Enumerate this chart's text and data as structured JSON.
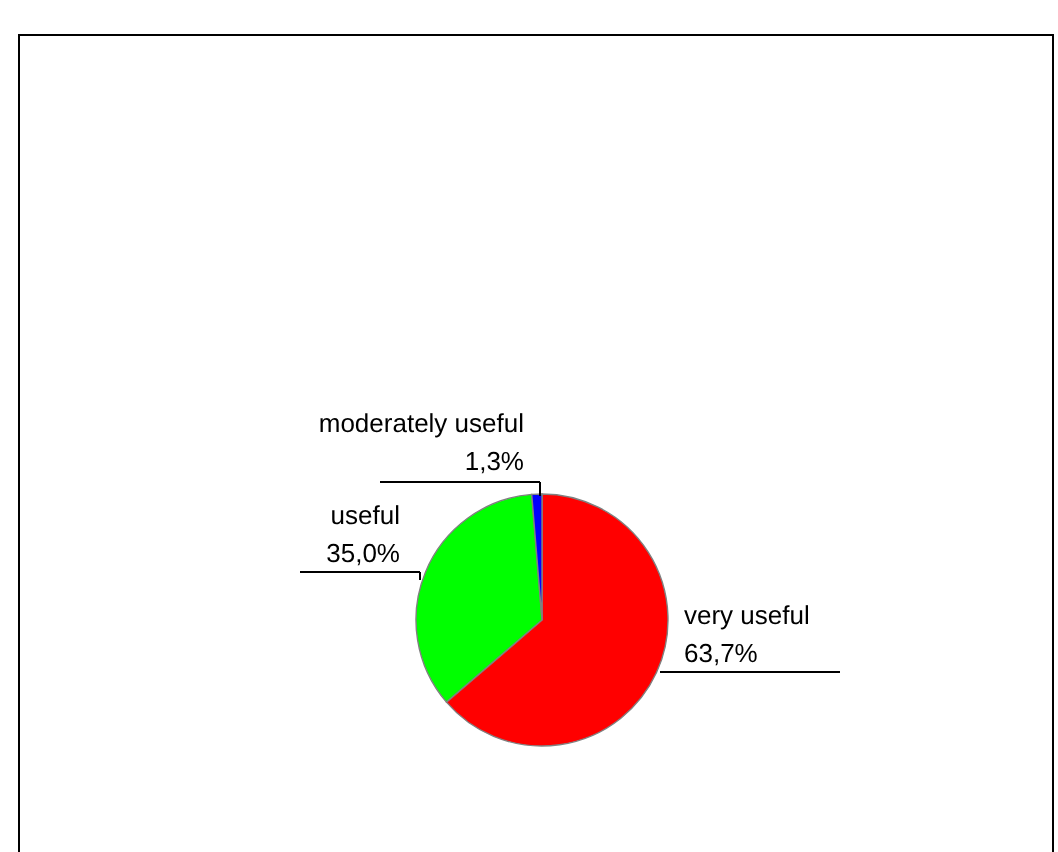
{
  "chart_data": {
    "type": "pie",
    "categories": [
      "very useful",
      "useful",
      "moderately useful"
    ],
    "values": [
      63.7,
      35.0,
      1.3
    ],
    "colors": [
      "#ff0000",
      "#00ff00",
      "#0000ff"
    ],
    "value_labels": [
      "63,7%",
      "35,0%",
      "1,3%"
    ]
  }
}
